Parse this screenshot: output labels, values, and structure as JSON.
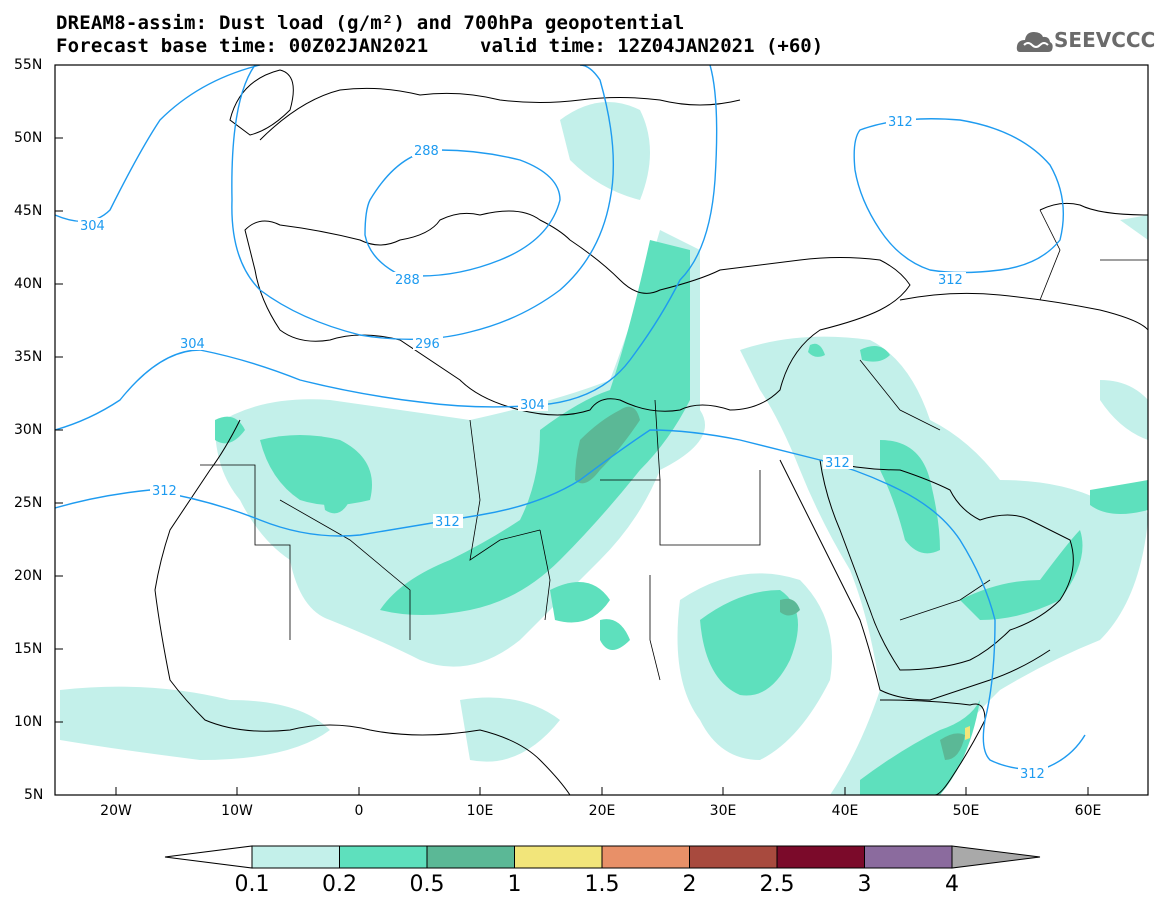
{
  "header": {
    "title_line1": "DREAM8-assim: Dust load (g/m²) and 700hPa geopotential",
    "title_line2_left": "Forecast base time: 00Z02JAN2021",
    "title_line2_right": "valid time: 12Z04JAN2021 (+60)"
  },
  "logo": {
    "text": "SEEVCCC",
    "icon": "cloud-icon",
    "color": "#6b6b6b"
  },
  "map": {
    "lat_labels": [
      "55N",
      "50N",
      "45N",
      "40N",
      "35N",
      "30N",
      "25N",
      "20N",
      "15N",
      "10N",
      "5N"
    ],
    "lon_labels": [
      "20W",
      "10W",
      "0",
      "10E",
      "20E",
      "30E",
      "40E",
      "50E",
      "60E"
    ],
    "contour_labels": [
      {
        "id": "c304a",
        "text": "304"
      },
      {
        "id": "c288a",
        "text": "288"
      },
      {
        "id": "c288b",
        "text": "288"
      },
      {
        "id": "c296",
        "text": "296"
      },
      {
        "id": "c304b",
        "text": "304"
      },
      {
        "id": "c304c",
        "text": "304"
      },
      {
        "id": "c312a",
        "text": "312"
      },
      {
        "id": "c312b",
        "text": "312"
      },
      {
        "id": "c312c",
        "text": "312"
      },
      {
        "id": "c312d",
        "text": "312"
      },
      {
        "id": "c312e",
        "text": "312"
      },
      {
        "id": "c312f",
        "text": "312"
      }
    ],
    "contour_color": "#1e9bf0"
  },
  "colorbar": {
    "labels": [
      "0.1",
      "0.2",
      "0.5",
      "1",
      "1.5",
      "2",
      "2.5",
      "3",
      "4"
    ],
    "colors": [
      "#c3f0ea",
      "#5ee0bd",
      "#5bb896",
      "#f2e57a",
      "#e89068",
      "#a84a3e",
      "#7b0a2a",
      "#8b6b9e",
      "#a9a9a9"
    ]
  }
}
